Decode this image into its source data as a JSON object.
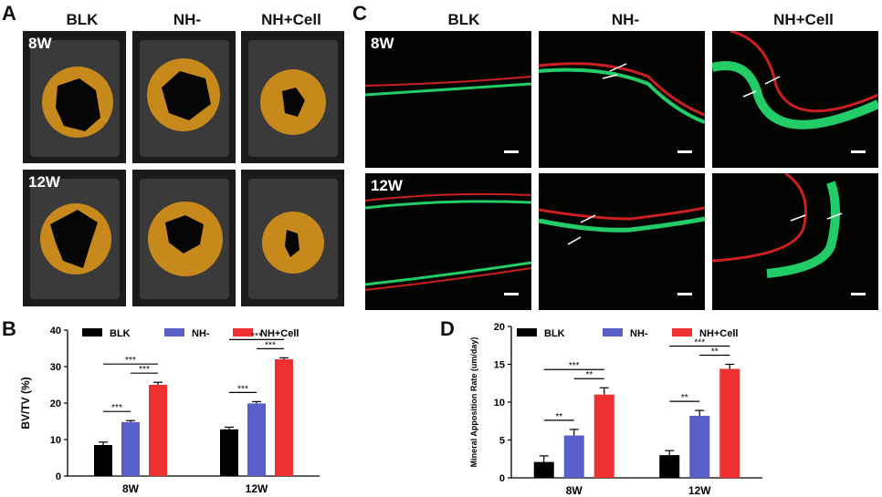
{
  "panels": {
    "a": {
      "letter": "A",
      "columns": [
        "BLK",
        "NH-",
        "NH+Cell"
      ],
      "rows": [
        "8W",
        "12W"
      ]
    },
    "c": {
      "letter": "C",
      "columns": [
        "BLK",
        "NH-",
        "NH+Cell"
      ],
      "rows": [
        "8W",
        "12W"
      ]
    },
    "b": {
      "letter": "B"
    },
    "d": {
      "letter": "D"
    }
  },
  "colors": {
    "BLK": "#000000",
    "NH-": "#5a5ec8",
    "NH+Cell": "#ee3030"
  },
  "chart_data": [
    {
      "id": "B",
      "type": "bar",
      "categories": [
        "8W",
        "12W"
      ],
      "series": [
        {
          "name": "BLK",
          "values": [
            8.5,
            12.8
          ],
          "errors": [
            0.8,
            0.6
          ]
        },
        {
          "name": "NH-",
          "values": [
            14.8,
            19.9
          ],
          "errors": [
            0.4,
            0.5
          ]
        },
        {
          "name": "NH+Cell",
          "values": [
            25.0,
            32.0
          ],
          "errors": [
            0.7,
            0.4
          ]
        }
      ],
      "ylabel": "BV/TV (%)",
      "ylim": [
        0,
        40
      ],
      "yticks": [
        "0",
        "10",
        "20",
        "30",
        "40"
      ],
      "legend": "top",
      "significance": [
        {
          "category": "8W",
          "from": 0,
          "to": 1,
          "label": "***"
        },
        {
          "category": "8W",
          "from": 1,
          "to": 2,
          "label": "***"
        },
        {
          "category": "8W",
          "from": 0,
          "to": 2,
          "label": "***"
        },
        {
          "category": "12W",
          "from": 0,
          "to": 1,
          "label": "***"
        },
        {
          "category": "12W",
          "from": 1,
          "to": 2,
          "label": "***"
        },
        {
          "category": "12W",
          "from": 0,
          "to": 2,
          "label": "***"
        }
      ]
    },
    {
      "id": "D",
      "type": "bar",
      "categories": [
        "8W",
        "12W"
      ],
      "series": [
        {
          "name": "BLK",
          "values": [
            2.1,
            3.0
          ],
          "errors": [
            0.8,
            0.6
          ]
        },
        {
          "name": "NH-",
          "values": [
            5.6,
            8.2
          ],
          "errors": [
            0.8,
            0.7
          ]
        },
        {
          "name": "NH+Cell",
          "values": [
            11.0,
            14.4
          ],
          "errors": [
            0.9,
            0.6
          ]
        }
      ],
      "ylabel": "Mineral Apposition Rate (um/day)",
      "ylim": [
        0,
        20
      ],
      "yticks": [
        "0",
        "5",
        "10",
        "15",
        "20"
      ],
      "legend": "top",
      "significance": [
        {
          "category": "8W",
          "from": 0,
          "to": 1,
          "label": "**"
        },
        {
          "category": "8W",
          "from": 1,
          "to": 2,
          "label": "**"
        },
        {
          "category": "8W",
          "from": 0,
          "to": 2,
          "label": "***"
        },
        {
          "category": "12W",
          "from": 0,
          "to": 1,
          "label": "**"
        },
        {
          "category": "12W",
          "from": 1,
          "to": 2,
          "label": "**"
        },
        {
          "category": "12W",
          "from": 0,
          "to": 2,
          "label": "***"
        }
      ]
    }
  ]
}
